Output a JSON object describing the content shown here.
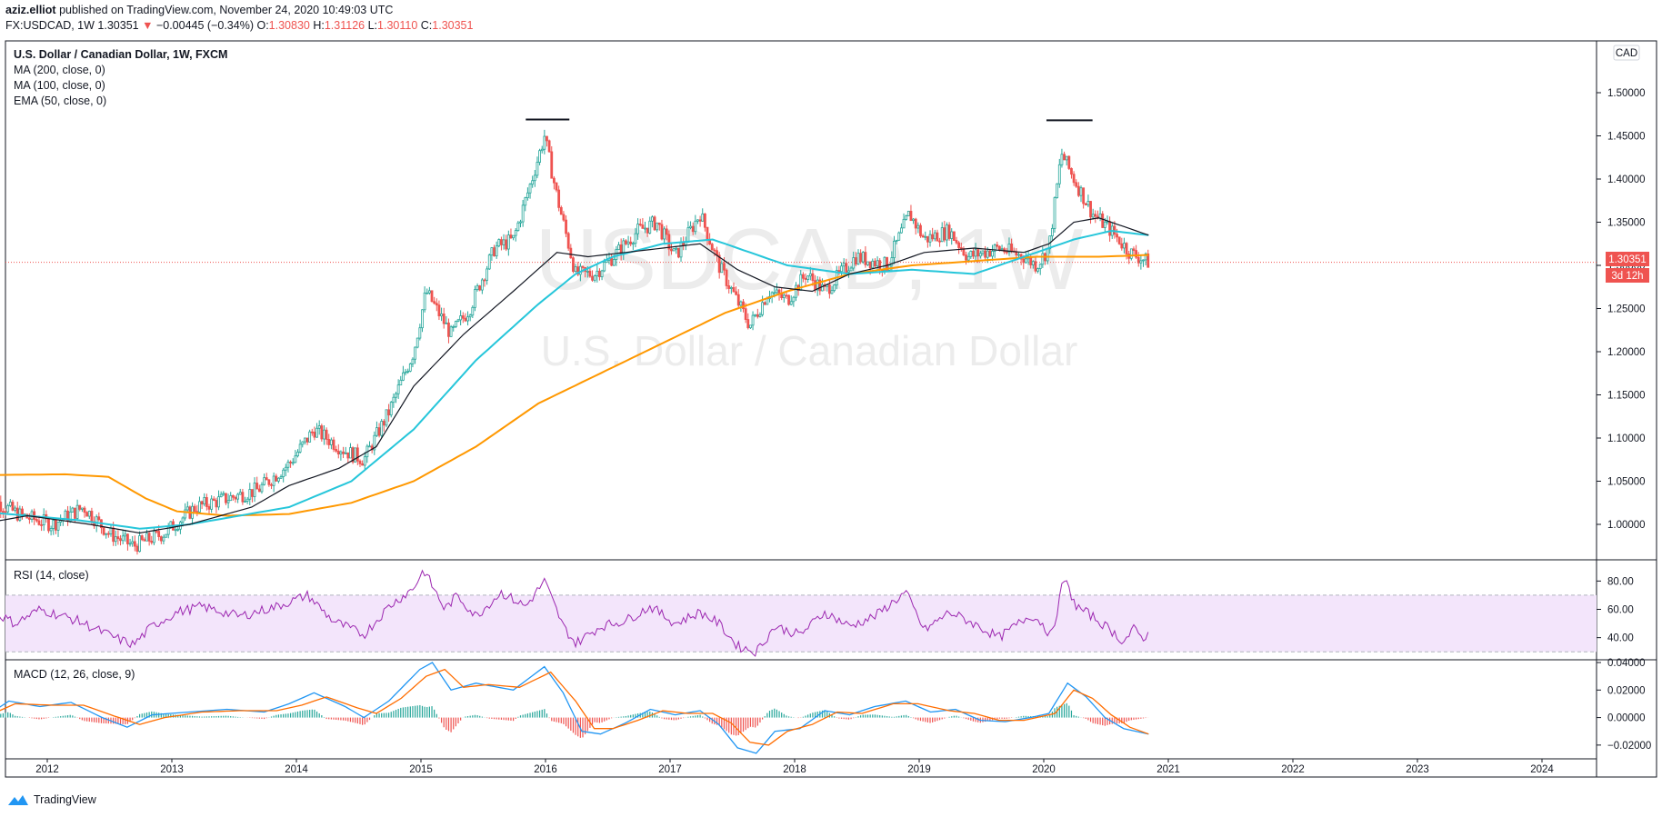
{
  "header": {
    "author": "aziz.elliot",
    "published": "published on TradingView.com, November 24, 2020 10:49:03 UTC",
    "symbol": "FX:USDCAD, 1W",
    "last": "1.30351",
    "change": "−0.00445 (−0.34%)",
    "o_label": "O:",
    "o_value": "1.30830",
    "h_label": "H:",
    "h_value": "1.31126",
    "l_label": "L:",
    "l_value": "1.30110",
    "c_label": "C:",
    "c_value": "1.30351"
  },
  "legend": {
    "title": "U.S. Dollar / Canadian Dollar, 1W, FXCM",
    "ma200": "MA (200, close, 0)",
    "ma100": "MA (100, close, 0)",
    "ema50": "EMA (50, close, 0)"
  },
  "watermark": {
    "symbol": "USDCAD, 1W",
    "name": "U.S. Dollar / Canadian Dollar"
  },
  "price_axis": {
    "currency": "CAD",
    "last_price_label": "1.30351",
    "countdown": "3d 12h"
  },
  "rsi": {
    "title": "RSI (14, close)",
    "ticks": [
      "80.00",
      "60.00",
      "40.00"
    ]
  },
  "macd": {
    "title": "MACD (12, 26, close, 9)",
    "ticks": [
      "0.04000",
      "0.02000",
      "0.00000",
      "−0.02000"
    ]
  },
  "footer": {
    "brand": "TradingView"
  },
  "colors": {
    "up": "#26a69a",
    "down": "#ef5350",
    "ma200": "#ff9800",
    "ma100": "#26c6da",
    "ema50": "#131722",
    "rsi": "#9c27b0",
    "rsi_band": "#f3e5fb",
    "macd": "#2196f3",
    "signal": "#ff6d00"
  },
  "chart_data": [
    {
      "type": "candlestick",
      "title": "U.S. Dollar / Canadian Dollar, 1W, FXCM",
      "x_ticks": [
        "2012",
        "2013",
        "2014",
        "2015",
        "2016",
        "2017",
        "2018",
        "2019",
        "2020",
        "2021",
        "2022",
        "2023",
        "2024"
      ],
      "y_ticks": [
        "1.00000",
        "1.05000",
        "1.10000",
        "1.15000",
        "1.20000",
        "1.25000",
        "1.30000",
        "1.35000",
        "1.40000",
        "1.45000",
        "1.50000"
      ],
      "ylim": [
        0.96,
        1.56
      ],
      "last_price": 1.30351,
      "anchors_close": [
        [
          2011.6,
          1.03
        ],
        [
          2011.85,
          1.01
        ],
        [
          2012.1,
          1.0
        ],
        [
          2012.35,
          1.02
        ],
        [
          2012.55,
          0.99
        ],
        [
          2012.75,
          0.975
        ],
        [
          2013.0,
          0.99
        ],
        [
          2013.25,
          1.02
        ],
        [
          2013.5,
          1.03
        ],
        [
          2013.75,
          1.04
        ],
        [
          2014.0,
          1.07
        ],
        [
          2014.2,
          1.11
        ],
        [
          2014.45,
          1.085
        ],
        [
          2014.6,
          1.075
        ],
        [
          2014.8,
          1.13
        ],
        [
          2015.0,
          1.2
        ],
        [
          2015.1,
          1.27
        ],
        [
          2015.3,
          1.22
        ],
        [
          2015.45,
          1.25
        ],
        [
          2015.65,
          1.32
        ],
        [
          2015.8,
          1.33
        ],
        [
          2015.95,
          1.4
        ],
        [
          2016.05,
          1.45
        ],
        [
          2016.15,
          1.38
        ],
        [
          2016.3,
          1.29
        ],
        [
          2016.45,
          1.29
        ],
        [
          2016.6,
          1.31
        ],
        [
          2016.8,
          1.34
        ],
        [
          2016.95,
          1.35
        ],
        [
          2017.1,
          1.31
        ],
        [
          2017.3,
          1.36
        ],
        [
          2017.45,
          1.3
        ],
        [
          2017.7,
          1.23
        ],
        [
          2017.85,
          1.27
        ],
        [
          2018.0,
          1.26
        ],
        [
          2018.15,
          1.29
        ],
        [
          2018.3,
          1.27
        ],
        [
          2018.55,
          1.31
        ],
        [
          2018.8,
          1.3
        ],
        [
          2018.98,
          1.36
        ],
        [
          2019.1,
          1.33
        ],
        [
          2019.3,
          1.34
        ],
        [
          2019.45,
          1.31
        ],
        [
          2019.7,
          1.32
        ],
        [
          2019.9,
          1.31
        ],
        [
          2020.0,
          1.3
        ],
        [
          2020.1,
          1.32
        ],
        [
          2020.2,
          1.43
        ],
        [
          2020.3,
          1.4
        ],
        [
          2020.45,
          1.36
        ],
        [
          2020.6,
          1.34
        ],
        [
          2020.75,
          1.315
        ],
        [
          2020.9,
          1.3035
        ]
      ],
      "ma200_path": [
        [
          2011.5,
          1.057
        ],
        [
          2012.2,
          1.058
        ],
        [
          2012.55,
          1.055
        ],
        [
          2012.85,
          1.03
        ],
        [
          2013.1,
          1.015
        ],
        [
          2013.5,
          1.01
        ],
        [
          2014.0,
          1.012
        ],
        [
          2014.5,
          1.025
        ],
        [
          2015.0,
          1.05
        ],
        [
          2015.5,
          1.09
        ],
        [
          2016.0,
          1.14
        ],
        [
          2016.5,
          1.175
        ],
        [
          2017.0,
          1.21
        ],
        [
          2017.5,
          1.245
        ],
        [
          2018.0,
          1.27
        ],
        [
          2018.5,
          1.29
        ],
        [
          2019.0,
          1.3
        ],
        [
          2019.5,
          1.305
        ],
        [
          2020.0,
          1.31
        ],
        [
          2020.5,
          1.31
        ],
        [
          2020.9,
          1.312
        ]
      ],
      "ma100_path": [
        [
          2011.5,
          1.015
        ],
        [
          2012.3,
          1.005
        ],
        [
          2012.8,
          0.995
        ],
        [
          2013.2,
          1.0
        ],
        [
          2013.6,
          1.01
        ],
        [
          2014.0,
          1.02
        ],
        [
          2014.5,
          1.05
        ],
        [
          2015.0,
          1.11
        ],
        [
          2015.5,
          1.19
        ],
        [
          2016.0,
          1.255
        ],
        [
          2016.3,
          1.29
        ],
        [
          2016.6,
          1.31
        ],
        [
          2017.0,
          1.325
        ],
        [
          2017.4,
          1.33
        ],
        [
          2017.7,
          1.315
        ],
        [
          2018.0,
          1.3
        ],
        [
          2018.5,
          1.29
        ],
        [
          2019.0,
          1.295
        ],
        [
          2019.5,
          1.29
        ],
        [
          2019.9,
          1.31
        ],
        [
          2020.3,
          1.33
        ],
        [
          2020.6,
          1.34
        ],
        [
          2020.9,
          1.335
        ]
      ],
      "ema50_path": [
        [
          2011.5,
          1.0
        ],
        [
          2011.9,
          1.01
        ],
        [
          2012.4,
          1.0
        ],
        [
          2012.8,
          0.99
        ],
        [
          2013.2,
          1.0
        ],
        [
          2013.7,
          1.02
        ],
        [
          2014.0,
          1.045
        ],
        [
          2014.4,
          1.065
        ],
        [
          2014.7,
          1.09
        ],
        [
          2015.0,
          1.16
        ],
        [
          2015.4,
          1.22
        ],
        [
          2015.8,
          1.27
        ],
        [
          2016.15,
          1.315
        ],
        [
          2016.4,
          1.31
        ],
        [
          2016.7,
          1.315
        ],
        [
          2017.0,
          1.32
        ],
        [
          2017.3,
          1.325
        ],
        [
          2017.6,
          1.295
        ],
        [
          2017.9,
          1.275
        ],
        [
          2018.2,
          1.27
        ],
        [
          2018.5,
          1.29
        ],
        [
          2018.8,
          1.3
        ],
        [
          2019.1,
          1.315
        ],
        [
          2019.5,
          1.32
        ],
        [
          2019.9,
          1.315
        ],
        [
          2020.1,
          1.325
        ],
        [
          2020.3,
          1.35
        ],
        [
          2020.5,
          1.355
        ],
        [
          2020.7,
          1.345
        ],
        [
          2020.9,
          1.335
        ]
      ],
      "annotations": [
        {
          "type": "hline-segment",
          "x": [
            2015.9,
            2016.25
          ],
          "y": 1.469
        },
        {
          "type": "hline-segment",
          "x": [
            2020.08,
            2020.45
          ],
          "y": 1.468
        }
      ]
    },
    {
      "type": "line",
      "title": "RSI (14, close)",
      "y_ticks": [
        "80.00",
        "60.00",
        "40.00"
      ],
      "ylim": [
        25,
        95
      ],
      "band": [
        30,
        70
      ],
      "anchors": [
        [
          2011.55,
          62
        ],
        [
          2011.8,
          50
        ],
        [
          2012.0,
          60
        ],
        [
          2012.3,
          52
        ],
        [
          2012.6,
          40
        ],
        [
          2012.75,
          35
        ],
        [
          2012.9,
          48
        ],
        [
          2013.1,
          58
        ],
        [
          2013.3,
          62
        ],
        [
          2013.6,
          55
        ],
        [
          2013.9,
          62
        ],
        [
          2014.15,
          70
        ],
        [
          2014.35,
          52
        ],
        [
          2014.6,
          42
        ],
        [
          2014.8,
          62
        ],
        [
          2015.0,
          75
        ],
        [
          2015.08,
          88
        ],
        [
          2015.25,
          60
        ],
        [
          2015.35,
          70
        ],
        [
          2015.5,
          55
        ],
        [
          2015.7,
          72
        ],
        [
          2015.9,
          62
        ],
        [
          2016.05,
          80
        ],
        [
          2016.2,
          48
        ],
        [
          2016.3,
          36
        ],
        [
          2016.5,
          48
        ],
        [
          2016.7,
          52
        ],
        [
          2016.9,
          62
        ],
        [
          2017.1,
          50
        ],
        [
          2017.3,
          58
        ],
        [
          2017.45,
          50
        ],
        [
          2017.6,
          34
        ],
        [
          2017.75,
          30
        ],
        [
          2017.9,
          48
        ],
        [
          2018.1,
          42
        ],
        [
          2018.3,
          58
        ],
        [
          2018.5,
          48
        ],
        [
          2018.7,
          55
        ],
        [
          2018.95,
          72
        ],
        [
          2019.1,
          45
        ],
        [
          2019.3,
          58
        ],
        [
          2019.45,
          52
        ],
        [
          2019.7,
          40
        ],
        [
          2019.95,
          56
        ],
        [
          2020.05,
          50
        ],
        [
          2020.12,
          40
        ],
        [
          2020.22,
          82
        ],
        [
          2020.32,
          62
        ],
        [
          2020.45,
          55
        ],
        [
          2020.6,
          45
        ],
        [
          2020.7,
          37
        ],
        [
          2020.78,
          46
        ],
        [
          2020.85,
          40
        ],
        [
          2020.9,
          42
        ]
      ]
    },
    {
      "type": "line",
      "title": "MACD (12, 26, close, 9)",
      "y_ticks": [
        "0.04000",
        "0.02000",
        "0.00000",
        "−0.02000"
      ],
      "ylim": [
        -0.03,
        0.042
      ],
      "macd_anchors": [
        [
          2011.55,
          0.0
        ],
        [
          2011.75,
          0.012
        ],
        [
          2012.0,
          0.008
        ],
        [
          2012.25,
          0.011
        ],
        [
          2012.5,
          0.0
        ],
        [
          2012.7,
          -0.007
        ],
        [
          2012.9,
          0.002
        ],
        [
          2013.2,
          0.004
        ],
        [
          2013.5,
          0.006
        ],
        [
          2013.8,
          0.004
        ],
        [
          2014.0,
          0.01
        ],
        [
          2014.2,
          0.018
        ],
        [
          2014.45,
          0.008
        ],
        [
          2014.6,
          0.0
        ],
        [
          2014.8,
          0.012
        ],
        [
          2015.05,
          0.035
        ],
        [
          2015.15,
          0.04
        ],
        [
          2015.3,
          0.02
        ],
        [
          2015.5,
          0.025
        ],
        [
          2015.8,
          0.02
        ],
        [
          2016.05,
          0.037
        ],
        [
          2016.2,
          0.018
        ],
        [
          2016.35,
          -0.01
        ],
        [
          2016.5,
          -0.012
        ],
        [
          2016.7,
          -0.004
        ],
        [
          2016.9,
          0.006
        ],
        [
          2017.1,
          0.002
        ],
        [
          2017.3,
          0.005
        ],
        [
          2017.45,
          -0.005
        ],
        [
          2017.6,
          -0.022
        ],
        [
          2017.75,
          -0.026
        ],
        [
          2017.9,
          -0.01
        ],
        [
          2018.1,
          -0.008
        ],
        [
          2018.3,
          0.005
        ],
        [
          2018.5,
          0.002
        ],
        [
          2018.7,
          0.008
        ],
        [
          2018.95,
          0.012
        ],
        [
          2019.15,
          0.004
        ],
        [
          2019.35,
          0.006
        ],
        [
          2019.55,
          -0.002
        ],
        [
          2019.75,
          -0.003
        ],
        [
          2019.95,
          0.0
        ],
        [
          2020.1,
          0.003
        ],
        [
          2020.25,
          0.025
        ],
        [
          2020.4,
          0.015
        ],
        [
          2020.55,
          0.0
        ],
        [
          2020.7,
          -0.008
        ],
        [
          2020.9,
          -0.012
        ]
      ],
      "signal_anchors": [
        [
          2011.55,
          0.0
        ],
        [
          2011.8,
          0.01
        ],
        [
          2012.1,
          0.009
        ],
        [
          2012.35,
          0.009
        ],
        [
          2012.6,
          0.001
        ],
        [
          2012.8,
          -0.005
        ],
        [
          2013.0,
          0.0
        ],
        [
          2013.3,
          0.004
        ],
        [
          2013.6,
          0.005
        ],
        [
          2013.9,
          0.005
        ],
        [
          2014.1,
          0.009
        ],
        [
          2014.3,
          0.015
        ],
        [
          2014.55,
          0.007
        ],
        [
          2014.7,
          0.003
        ],
        [
          2014.9,
          0.014
        ],
        [
          2015.1,
          0.03
        ],
        [
          2015.25,
          0.035
        ],
        [
          2015.4,
          0.022
        ],
        [
          2015.6,
          0.024
        ],
        [
          2015.85,
          0.022
        ],
        [
          2016.1,
          0.033
        ],
        [
          2016.3,
          0.012
        ],
        [
          2016.45,
          -0.008
        ],
        [
          2016.6,
          -0.008
        ],
        [
          2016.8,
          -0.002
        ],
        [
          2017.0,
          0.005
        ],
        [
          2017.2,
          0.003
        ],
        [
          2017.4,
          0.003
        ],
        [
          2017.55,
          -0.004
        ],
        [
          2017.7,
          -0.018
        ],
        [
          2017.85,
          -0.02
        ],
        [
          2018.0,
          -0.01
        ],
        [
          2018.2,
          -0.005
        ],
        [
          2018.4,
          0.004
        ],
        [
          2018.6,
          0.003
        ],
        [
          2018.85,
          0.01
        ],
        [
          2019.05,
          0.01
        ],
        [
          2019.3,
          0.005
        ],
        [
          2019.5,
          0.003
        ],
        [
          2019.7,
          -0.002
        ],
        [
          2019.9,
          -0.002
        ],
        [
          2020.15,
          0.003
        ],
        [
          2020.3,
          0.02
        ],
        [
          2020.45,
          0.014
        ],
        [
          2020.6,
          0.002
        ],
        [
          2020.75,
          -0.007
        ],
        [
          2020.9,
          -0.012
        ]
      ]
    }
  ]
}
